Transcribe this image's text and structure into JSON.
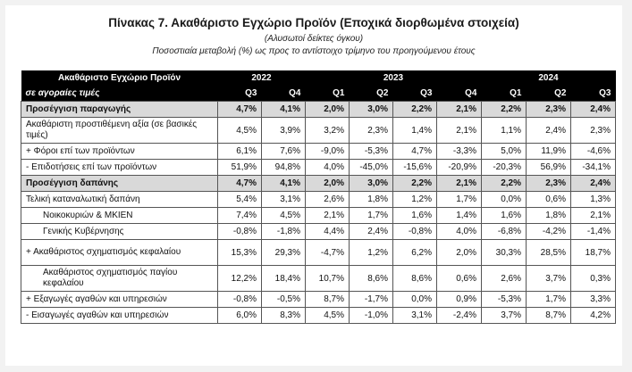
{
  "title": "Πίνακας 7. Ακαθάριστο Εγχώριο Προϊόν (Εποχικά διορθωμένα στοιχεία)",
  "subtitle": "(Αλυσωτοί δείκτες όγκου)",
  "subtitle2": "Ποσοστιαία μεταβολή (%) ως προς το αντίστοιχο τρίμηνο του προηγούμενου έτους",
  "header": {
    "label1": "Ακαθάριστο Εγχώριο Προϊόν",
    "label2": "σε αγοραίες τιμές",
    "years": [
      "2022",
      "2023",
      "2024"
    ],
    "quarters": [
      "Q3",
      "Q4",
      "Q1",
      "Q2",
      "Q3",
      "Q4",
      "Q1",
      "Q2",
      "Q3"
    ]
  },
  "rows": [
    {
      "label": "Προσέγγιση παραγωγής",
      "values": [
        "4,7%",
        "4,1%",
        "2,0%",
        "3,0%",
        "2,2%",
        "2,1%",
        "2,2%",
        "2,3%",
        "2,4%"
      ]
    },
    {
      "label": "Ακαθάριστη προστιθέμενη αξία (σε βασικές τιμές)",
      "values": [
        "4,5%",
        "3,9%",
        "3,2%",
        "2,3%",
        "1,4%",
        "2,1%",
        "1,1%",
        "2,4%",
        "2,3%"
      ]
    },
    {
      "label": "+  Φόροι επί των προϊόντων",
      "values": [
        "6,1%",
        "7,6%",
        "-9,0%",
        "-5,3%",
        "4,7%",
        "-3,3%",
        "5,0%",
        "11,9%",
        "-4,6%"
      ]
    },
    {
      "label": "-  Επιδοτήσεις επί των προϊόντων",
      "values": [
        "51,9%",
        "94,8%",
        "4,0%",
        "-45,0%",
        "-15,6%",
        "-20,9%",
        "-20,3%",
        "56,9%",
        "-34,1%"
      ]
    },
    {
      "label": "Προσέγγιση δαπάνης",
      "values": [
        "4,7%",
        "4,1%",
        "2,0%",
        "3,0%",
        "2,2%",
        "2,1%",
        "2,2%",
        "2,3%",
        "2,4%"
      ]
    },
    {
      "label": "Τελική καταναλωτική δαπάνη",
      "values": [
        "5,4%",
        "3,1%",
        "2,6%",
        "1,8%",
        "1,2%",
        "1,7%",
        "0,0%",
        "0,6%",
        "1,3%"
      ]
    },
    {
      "label": "Νοικοκυριών & ΜΚΙΕΝ",
      "values": [
        "7,4%",
        "4,5%",
        "2,1%",
        "1,7%",
        "1,6%",
        "1,4%",
        "1,6%",
        "1,8%",
        "2,1%"
      ]
    },
    {
      "label": "Γενικής Κυβέρνησης",
      "values": [
        "-0,8%",
        "-1,8%",
        "4,4%",
        "2,4%",
        "-0,8%",
        "4,0%",
        "-6,8%",
        "-4,2%",
        "-1,4%"
      ]
    },
    {
      "label": "+ Ακαθάριστος σχηματισμός κεφαλαίου",
      "values": [
        "15,3%",
        "29,3%",
        "-4,7%",
        "1,2%",
        "6,2%",
        "2,0%",
        "30,3%",
        "28,5%",
        "18,7%"
      ]
    },
    {
      "label": "Ακαθάριστος σχηματισμός παγίου κεφαλαίου",
      "values": [
        "12,2%",
        "18,4%",
        "10,7%",
        "8,6%",
        "8,6%",
        "0,6%",
        "2,6%",
        "3,7%",
        "0,3%"
      ]
    },
    {
      "label": "+ Εξαγωγές αγαθών και υπηρεσιών",
      "values": [
        "-0,8%",
        "-0,5%",
        "8,7%",
        "-1,7%",
        "0,0%",
        "0,9%",
        "-5,3%",
        "1,7%",
        "3,3%"
      ]
    },
    {
      "label": "-  Εισαγωγές αγαθών και υπηρεσιών",
      "values": [
        "6,0%",
        "8,3%",
        "4,5%",
        "-1,0%",
        "3,1%",
        "-2,4%",
        "3,7%",
        "8,7%",
        "4,2%"
      ]
    }
  ]
}
